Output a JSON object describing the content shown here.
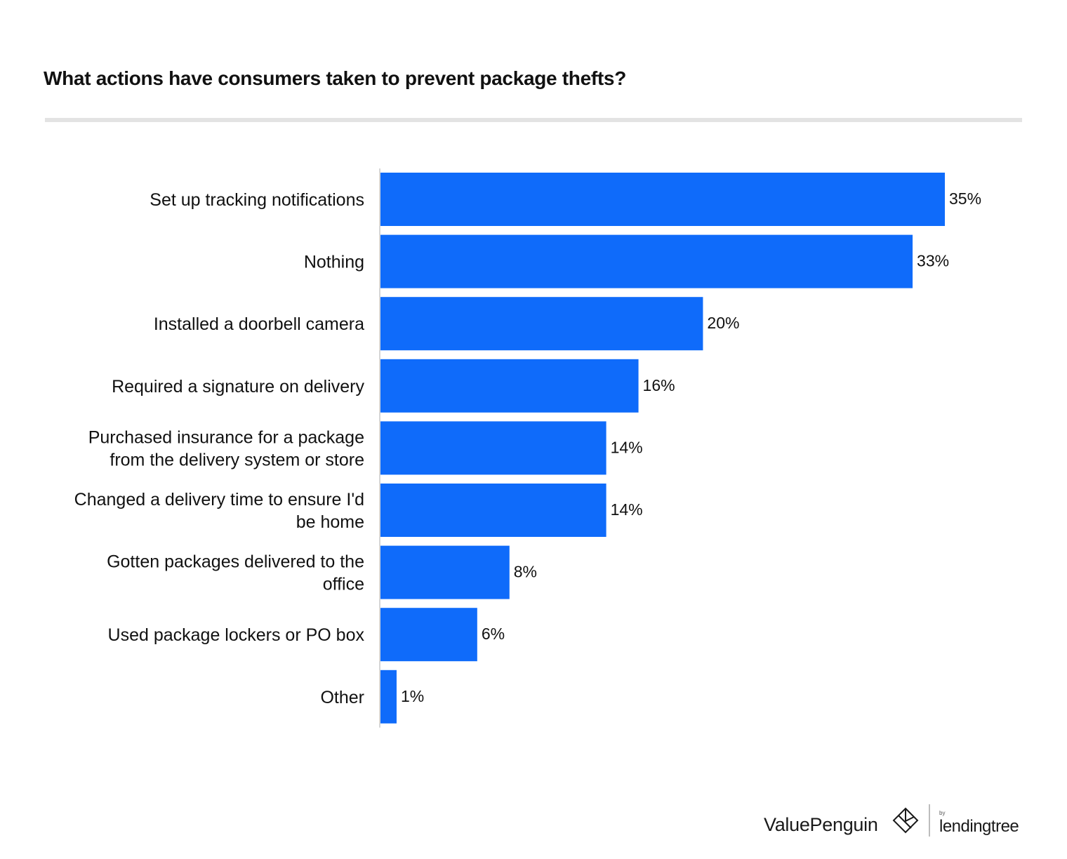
{
  "chart_data": {
    "type": "bar",
    "orientation": "horizontal",
    "title": "What actions have consumers taken to prevent package thefts?",
    "categories": [
      [
        "Set up tracking notifications"
      ],
      [
        "Nothing"
      ],
      [
        "Installed a doorbell camera"
      ],
      [
        "Required a signature on delivery"
      ],
      [
        "Purchased insurance for a package",
        "from the delivery system or store"
      ],
      [
        "Changed a delivery time to ensure I'd",
        "be home"
      ],
      [
        "Gotten packages delivered to the",
        "office"
      ],
      [
        "Used package lockers or PO box"
      ],
      [
        "Other"
      ]
    ],
    "values": [
      35,
      33,
      20,
      16,
      14,
      14,
      8,
      6,
      1
    ],
    "value_labels": [
      "35%",
      "33%",
      "20%",
      "16%",
      "14%",
      "14%",
      "8%",
      "6%",
      "1%"
    ],
    "unit": "%",
    "grid": false,
    "legend": "none",
    "bar_color": "#0f6bfa"
  },
  "footer": {
    "brand": "ValuePenguin",
    "by_text": "by",
    "partner": "lendingtree"
  }
}
